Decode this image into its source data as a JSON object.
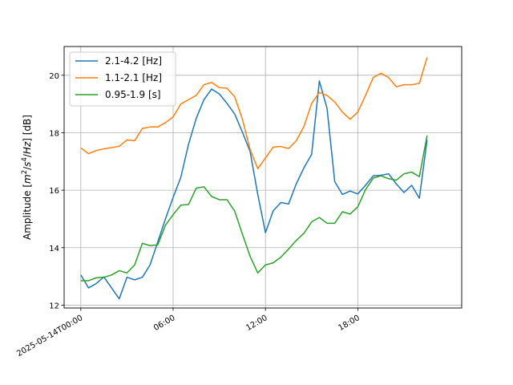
{
  "chart_data": {
    "type": "line",
    "title": "",
    "xlabel": "",
    "ylabel_parts": [
      "Amplitude [",
      "m",
      "2",
      "/",
      "s",
      "4",
      "/",
      "Hz",
      "] [dB]"
    ],
    "x_tick_values": [
      "2025-05-14T00:00",
      "2025-05-14T06:00",
      "2025-05-14T12:00",
      "2025-05-14T18:00"
    ],
    "x_tick_labels": [
      "2025-05-14T00:00",
      "06:00",
      "12:00",
      "18:00"
    ],
    "xlim": [
      "2025-05-13T22:55",
      "2025-05-15T00:45"
    ],
    "ylim": [
      11.9,
      21.0
    ],
    "y_ticks": [
      12,
      14,
      16,
      18,
      20
    ],
    "grid": true,
    "legend_position": "top-left",
    "x": [
      "2025-05-14T00:00",
      "2025-05-14T00:30",
      "2025-05-14T01:00",
      "2025-05-14T01:30",
      "2025-05-14T02:00",
      "2025-05-14T02:30",
      "2025-05-14T03:00",
      "2025-05-14T03:30",
      "2025-05-14T04:00",
      "2025-05-14T04:30",
      "2025-05-14T05:00",
      "2025-05-14T05:30",
      "2025-05-14T06:00",
      "2025-05-14T06:30",
      "2025-05-14T07:00",
      "2025-05-14T07:30",
      "2025-05-14T08:00",
      "2025-05-14T08:30",
      "2025-05-14T09:00",
      "2025-05-14T09:30",
      "2025-05-14T10:00",
      "2025-05-14T10:30",
      "2025-05-14T11:00",
      "2025-05-14T11:30",
      "2025-05-14T12:00",
      "2025-05-14T12:30",
      "2025-05-14T13:00",
      "2025-05-14T13:30",
      "2025-05-14T14:00",
      "2025-05-14T14:30",
      "2025-05-14T15:00",
      "2025-05-14T15:30",
      "2025-05-14T16:00",
      "2025-05-14T16:30",
      "2025-05-14T17:00",
      "2025-05-14T17:30",
      "2025-05-14T18:00",
      "2025-05-14T18:30",
      "2025-05-14T19:00",
      "2025-05-14T19:30",
      "2025-05-14T20:00",
      "2025-05-14T20:30",
      "2025-05-14T21:00",
      "2025-05-14T21:30",
      "2025-05-14T22:00",
      "2025-05-14T22:30"
    ],
    "series": [
      {
        "name": "2.1-4.2 [Hz]",
        "color": "#1f77b4",
        "values": [
          13.05,
          12.6,
          12.75,
          12.98,
          12.6,
          12.22,
          12.97,
          12.88,
          12.97,
          13.4,
          14.2,
          15.0,
          15.75,
          16.45,
          17.6,
          18.5,
          19.15,
          19.52,
          19.35,
          19.02,
          18.65,
          18.02,
          17.35,
          15.85,
          14.52,
          15.28,
          15.57,
          15.52,
          16.22,
          16.78,
          17.25,
          19.8,
          18.85,
          16.3,
          15.85,
          15.97,
          15.87,
          16.17,
          16.5,
          16.52,
          16.57,
          16.22,
          15.92,
          16.17,
          15.72,
          17.75
        ]
      },
      {
        "name": "1.1-2.1 [Hz]",
        "color": "#ff7f0e",
        "values": [
          17.47,
          17.27,
          17.38,
          17.44,
          17.48,
          17.53,
          17.75,
          17.72,
          18.15,
          18.2,
          18.2,
          18.35,
          18.55,
          19.0,
          19.15,
          19.3,
          19.67,
          19.75,
          19.57,
          19.55,
          19.25,
          18.47,
          17.42,
          16.75,
          17.12,
          17.5,
          17.52,
          17.45,
          17.72,
          18.22,
          19.02,
          19.4,
          19.3,
          19.07,
          18.72,
          18.47,
          18.72,
          19.3,
          19.92,
          20.07,
          19.92,
          19.6,
          19.67,
          19.67,
          19.72,
          20.62
        ]
      },
      {
        "name": "0.95-1.9 [s]",
        "color": "#2ca02c",
        "values": [
          12.85,
          12.85,
          12.95,
          12.97,
          13.05,
          13.2,
          13.12,
          13.4,
          14.15,
          14.07,
          14.1,
          14.78,
          15.15,
          15.48,
          15.5,
          16.07,
          16.12,
          15.78,
          15.67,
          15.67,
          15.27,
          14.47,
          13.7,
          13.12,
          13.4,
          13.47,
          13.67,
          13.95,
          14.25,
          14.5,
          14.9,
          15.05,
          14.85,
          14.85,
          15.25,
          15.17,
          15.42,
          16.02,
          16.42,
          16.5,
          16.4,
          16.35,
          16.57,
          16.63,
          16.47,
          17.9
        ]
      }
    ]
  }
}
